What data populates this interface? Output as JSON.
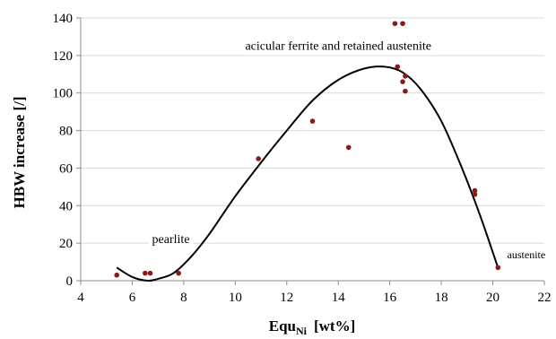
{
  "chart_data": {
    "type": "scatter",
    "title": "",
    "xlabel_main": "Equ",
    "xlabel_sub": "Ni",
    "xlabel_unit": "[wt%]",
    "ylabel": "HBW increase [/]",
    "xlim": [
      4,
      22
    ],
    "ylim": [
      0,
      140
    ],
    "xticks": [
      4,
      6,
      8,
      10,
      12,
      14,
      16,
      18,
      20,
      22
    ],
    "yticks": [
      0,
      20,
      40,
      60,
      80,
      100,
      120,
      140
    ],
    "grid": "horizontal",
    "point_color": "#8b1a1a",
    "curve_color": "#000000",
    "points": [
      {
        "x": 5.4,
        "y": 3
      },
      {
        "x": 6.5,
        "y": 4
      },
      {
        "x": 6.7,
        "y": 4
      },
      {
        "x": 7.8,
        "y": 4
      },
      {
        "x": 10.9,
        "y": 65
      },
      {
        "x": 13.0,
        "y": 85
      },
      {
        "x": 14.4,
        "y": 71
      },
      {
        "x": 16.2,
        "y": 137
      },
      {
        "x": 16.5,
        "y": 137
      },
      {
        "x": 16.3,
        "y": 114
      },
      {
        "x": 16.6,
        "y": 109
      },
      {
        "x": 16.5,
        "y": 106
      },
      {
        "x": 16.6,
        "y": 101
      },
      {
        "x": 19.3,
        "y": 48
      },
      {
        "x": 19.3,
        "y": 46
      },
      {
        "x": 20.2,
        "y": 7
      }
    ],
    "trend_curve": {
      "x": [
        5.4,
        6.0,
        6.6,
        7.0,
        7.6,
        8.3,
        9.0,
        10.0,
        11.0,
        12.0,
        13.0,
        14.0,
        15.0,
        15.8,
        16.5,
        17.2,
        18.0,
        18.8,
        19.5,
        20.2
      ],
      "y": [
        7,
        2,
        0,
        1,
        4,
        13,
        25,
        45,
        63,
        80,
        96,
        107,
        113,
        114,
        111,
        102,
        85,
        60,
        35,
        7
      ]
    },
    "annotations": [
      {
        "text": "acicular ferrite and retained austenite",
        "x": 14.0,
        "y": 123
      },
      {
        "text": "pearlite",
        "x": 7.5,
        "y": 20
      },
      {
        "text": "austenite",
        "x": 21.3,
        "y": 12
      }
    ]
  }
}
